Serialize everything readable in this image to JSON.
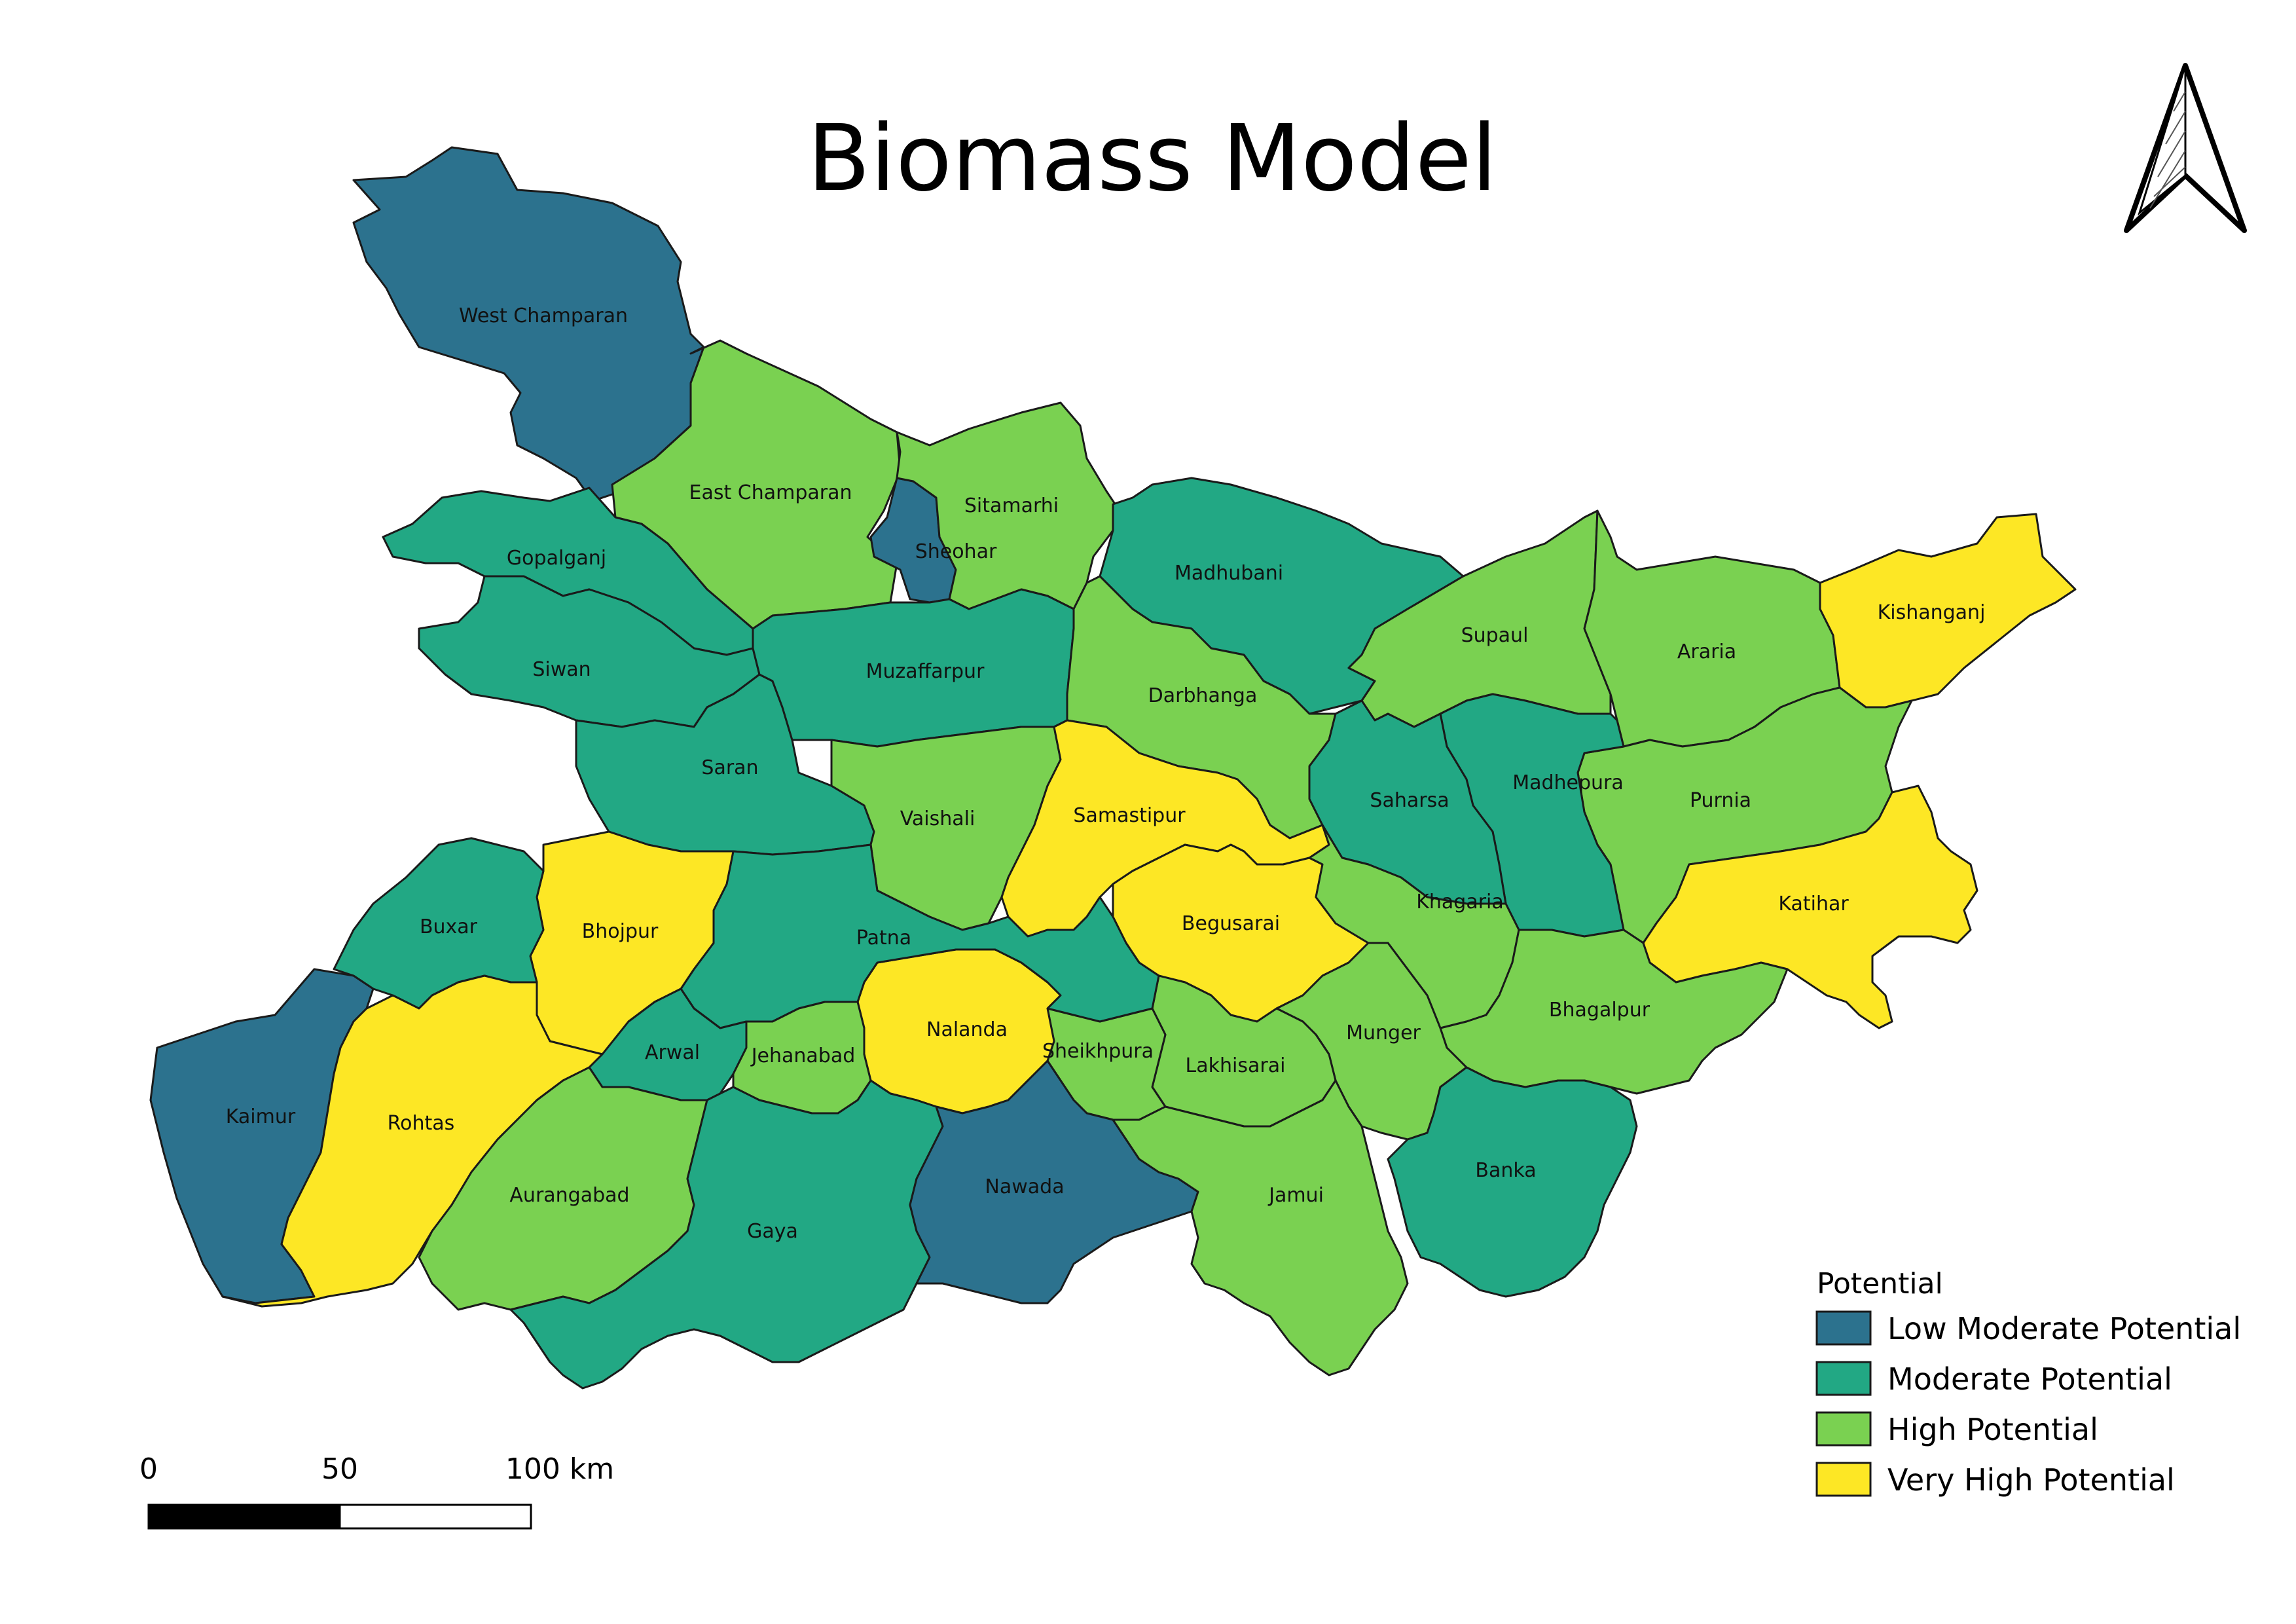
{
  "title": "Biomass Model",
  "legend": {
    "title": "Potential",
    "items": [
      {
        "label": "Low Moderate Potential",
        "color": "#2c728e"
      },
      {
        "label": "Moderate Potential",
        "color": "#22a884"
      },
      {
        "label": "High Potential",
        "color": "#7ad151"
      },
      {
        "label": "Very High Potential",
        "color": "#fde725"
      }
    ]
  },
  "scale_bar": {
    "ticks": [
      "0",
      "50",
      "100 km"
    ]
  },
  "north_arrow": {
    "icon": "north-arrow-icon"
  },
  "districts": [
    {
      "name": "West Champaran",
      "potential": "Low Moderate Potential"
    },
    {
      "name": "East Champaran",
      "potential": "High Potential"
    },
    {
      "name": "Sitamarhi",
      "potential": "High Potential"
    },
    {
      "name": "Sheohar",
      "potential": "Low Moderate Potential"
    },
    {
      "name": "Gopalganj",
      "potential": "Moderate Potential"
    },
    {
      "name": "Siwan",
      "potential": "Moderate Potential"
    },
    {
      "name": "Saran",
      "potential": "Moderate Potential"
    },
    {
      "name": "Muzaffarpur",
      "potential": "Moderate Potential"
    },
    {
      "name": "Madhubani",
      "potential": "Moderate Potential"
    },
    {
      "name": "Darbhanga",
      "potential": "High Potential"
    },
    {
      "name": "Supaul",
      "potential": "High Potential"
    },
    {
      "name": "Araria",
      "potential": "High Potential"
    },
    {
      "name": "Kishanganj",
      "potential": "Very High Potential"
    },
    {
      "name": "Purnia",
      "potential": "High Potential"
    },
    {
      "name": "Madhepura",
      "potential": "Moderate Potential"
    },
    {
      "name": "Saharsa",
      "potential": "Moderate Potential"
    },
    {
      "name": "Vaishali",
      "potential": "High Potential"
    },
    {
      "name": "Samastipur",
      "potential": "Very High Potential"
    },
    {
      "name": "Begusarai",
      "potential": "Very High Potential"
    },
    {
      "name": "Khagaria",
      "potential": "High Potential"
    },
    {
      "name": "Katihar",
      "potential": "Very High Potential"
    },
    {
      "name": "Bhagalpur",
      "potential": "High Potential"
    },
    {
      "name": "Munger",
      "potential": "High Potential"
    },
    {
      "name": "Lakhisarai",
      "potential": "High Potential"
    },
    {
      "name": "Sheikhpura",
      "potential": "High Potential"
    },
    {
      "name": "Nalanda",
      "potential": "Very High Potential"
    },
    {
      "name": "Patna",
      "potential": "Moderate Potential"
    },
    {
      "name": "Bhojpur",
      "potential": "Very High Potential"
    },
    {
      "name": "Buxar",
      "potential": "Moderate Potential"
    },
    {
      "name": "Kaimur",
      "potential": "Low Moderate Potential"
    },
    {
      "name": "Rohtas",
      "potential": "Very High Potential"
    },
    {
      "name": "Arwal",
      "potential": "Moderate Potential"
    },
    {
      "name": "Jehanabad",
      "potential": "High Potential"
    },
    {
      "name": "Aurangabad",
      "potential": "High Potential"
    },
    {
      "name": "Gaya",
      "potential": "Moderate Potential"
    },
    {
      "name": "Nawada",
      "potential": "Low Moderate Potential"
    },
    {
      "name": "Jamui",
      "potential": "High Potential"
    },
    {
      "name": "Banka",
      "potential": "Moderate Potential"
    }
  ]
}
